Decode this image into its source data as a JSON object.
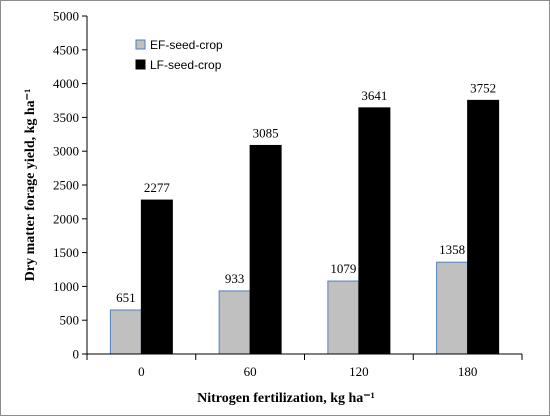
{
  "chart_data": {
    "type": "bar",
    "title": "",
    "xlabel": "Nitrogen fertilization, kg ha⁻¹",
    "ylabel": "Dry matter forage yield, kg ha⁻¹",
    "categories": [
      "0",
      "60",
      "120",
      "180"
    ],
    "ylim": [
      0,
      5000
    ],
    "ytick_step": 500,
    "yticks": [
      "0",
      "500",
      "1000",
      "1500",
      "2000",
      "2500",
      "3000",
      "3500",
      "4000",
      "4500",
      "5000"
    ],
    "grid": false,
    "legend_position": "top-left",
    "series": [
      {
        "name": "EF-seed-crop",
        "color": "#c0c0c0",
        "edge": "#4f81bd",
        "values": [
          651,
          933,
          1079,
          1358
        ]
      },
      {
        "name": "LF-seed-crop",
        "color": "#000000",
        "edge": "#000000",
        "values": [
          2277,
          3085,
          3641,
          3752
        ]
      }
    ]
  }
}
